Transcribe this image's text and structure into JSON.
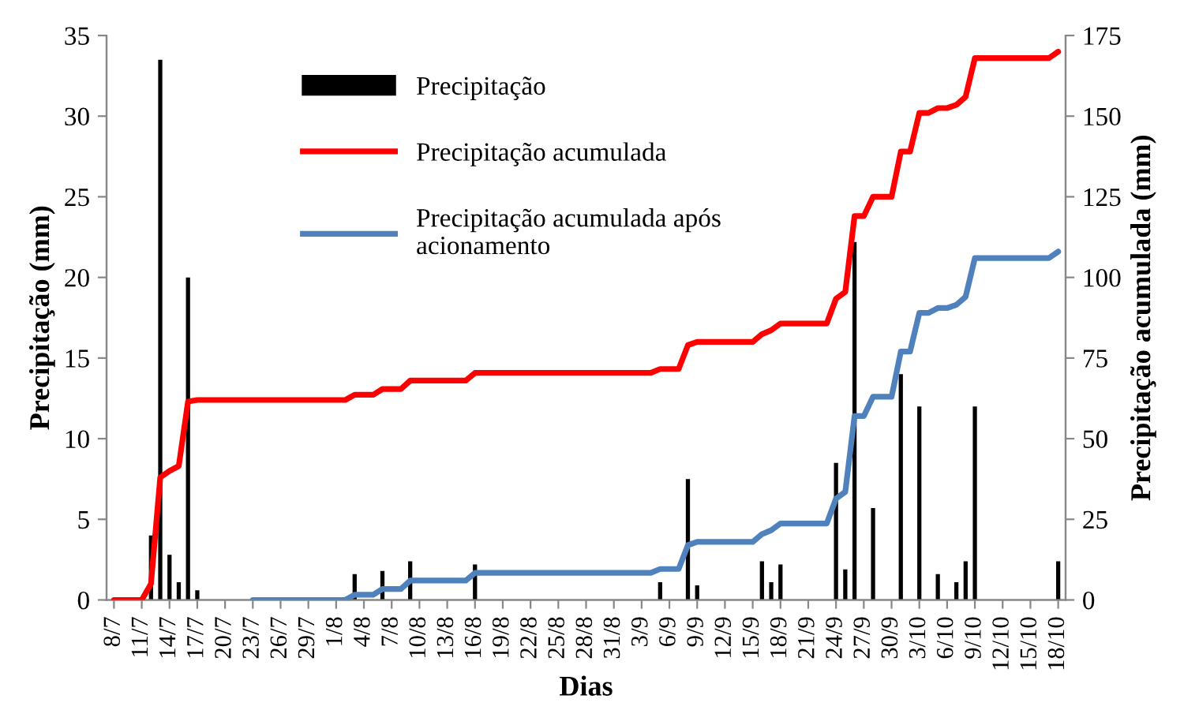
{
  "chart_data": {
    "type": "bar",
    "xlabel": "Dias",
    "ylabel": "Precipitação (mm)",
    "y2label": "Precipitação acumulada (mm)",
    "categories": [
      "8/7",
      null,
      null,
      "11/7",
      null,
      null,
      "14/7",
      null,
      null,
      "17/7",
      null,
      null,
      "20/7",
      null,
      null,
      "23/7",
      null,
      null,
      "26/7",
      null,
      null,
      "29/7",
      null,
      null,
      "1/8",
      null,
      null,
      "4/8",
      null,
      null,
      "7/8",
      null,
      null,
      "10/8",
      null,
      null,
      "13/8",
      null,
      null,
      "16/8",
      null,
      null,
      "19/8",
      null,
      null,
      "22/8",
      null,
      null,
      "25/8",
      null,
      null,
      "28/8",
      null,
      null,
      "31/8",
      null,
      null,
      "3/9",
      null,
      null,
      "6/9",
      null,
      null,
      "9/9",
      null,
      null,
      "12/9",
      null,
      null,
      "15/9",
      null,
      null,
      "18/9",
      null,
      null,
      "21/9",
      null,
      null,
      "24/9",
      null,
      null,
      "27/9",
      null,
      null,
      "30/9",
      null,
      null,
      "3/10",
      null,
      null,
      "6/10",
      null,
      null,
      "9/10",
      null,
      null,
      "12/10",
      null,
      null,
      "15/10",
      null,
      null,
      "18/10"
    ],
    "series": [
      {
        "name": "Precipitação",
        "color": "#000000",
        "values": [
          0,
          0,
          0,
          0,
          4,
          33.5,
          2.8,
          1.1,
          20,
          0.6,
          0,
          0,
          0,
          0,
          0,
          0,
          0,
          0,
          0,
          0,
          0,
          0,
          0,
          0,
          0,
          0,
          1.6,
          0,
          0,
          1.8,
          0,
          0,
          2.4,
          0,
          0,
          0,
          0,
          0,
          0,
          2.2,
          0,
          0,
          0,
          0,
          0,
          0,
          0,
          0,
          0,
          0,
          0,
          0,
          0,
          0,
          0,
          0,
          0,
          0,
          0,
          1.1,
          0,
          0,
          7.5,
          0.9,
          0,
          0,
          0,
          0,
          0,
          0,
          2.4,
          1.1,
          2.2,
          0,
          0,
          0,
          0,
          0,
          8.5,
          1.9,
          22.2,
          0,
          5.7,
          0,
          0,
          14,
          0,
          12,
          0,
          1.6,
          0,
          1.1,
          2.4,
          12,
          0,
          0,
          0,
          0,
          0,
          0,
          0,
          0,
          2.4
        ]
      },
      {
        "name": "Precipitação acumulada",
        "type": "line",
        "axis": "y2",
        "color": "#ff0000",
        "values": [
          0,
          0,
          0,
          0,
          5,
          38,
          40,
          41.5,
          61.5,
          62,
          62,
          62,
          62,
          62,
          62,
          62,
          62,
          62,
          62,
          62,
          62,
          62,
          62,
          62,
          62,
          62,
          63.6,
          63.6,
          63.6,
          65.4,
          65.4,
          65.4,
          68,
          68,
          68,
          68,
          68,
          68,
          68,
          70.4,
          70.4,
          70.4,
          70.4,
          70.4,
          70.4,
          70.4,
          70.4,
          70.4,
          70.4,
          70.4,
          70.4,
          70.4,
          70.4,
          70.4,
          70.4,
          70.4,
          70.4,
          70.4,
          70.4,
          71.6,
          71.6,
          71.6,
          79,
          80,
          80,
          80,
          80,
          80,
          80,
          80,
          82.4,
          83.6,
          85.7,
          85.7,
          85.7,
          85.7,
          85.7,
          85.7,
          93.4,
          95.5,
          119,
          119,
          125,
          125,
          125,
          139,
          139,
          151,
          151,
          152.5,
          152.5,
          153.5,
          156,
          168,
          168,
          168,
          168,
          168,
          168,
          168,
          168,
          168,
          170
        ]
      },
      {
        "name": "Precipitação acumulada após\nacionamento",
        "type": "line",
        "axis": "y2",
        "color": "#4f81bd",
        "values": [
          null,
          null,
          null,
          null,
          null,
          null,
          null,
          null,
          null,
          null,
          null,
          null,
          null,
          null,
          null,
          0,
          0,
          0,
          0,
          0,
          0,
          0,
          0,
          0,
          0,
          0,
          1.6,
          1.6,
          1.6,
          3.4,
          3.4,
          3.4,
          6,
          6,
          6,
          6,
          6,
          6,
          6,
          8.4,
          8.4,
          8.4,
          8.4,
          8.4,
          8.4,
          8.4,
          8.4,
          8.4,
          8.4,
          8.4,
          8.4,
          8.4,
          8.4,
          8.4,
          8.4,
          8.4,
          8.4,
          8.4,
          8.4,
          9.6,
          9.6,
          9.6,
          17,
          18,
          18,
          18,
          18,
          18,
          18,
          18,
          20.4,
          21.6,
          23.7,
          23.7,
          23.7,
          23.7,
          23.7,
          23.7,
          31.4,
          33.5,
          57,
          57,
          63,
          63,
          63,
          77,
          77,
          89,
          89,
          90.5,
          90.5,
          91.5,
          94,
          106,
          106,
          106,
          106,
          106,
          106,
          106,
          106,
          106,
          108
        ]
      }
    ],
    "ylim": [
      0,
      35
    ],
    "yticks": [
      0,
      5,
      10,
      15,
      20,
      25,
      30,
      35
    ],
    "y2lim": [
      0,
      175
    ],
    "y2ticks": [
      0,
      25,
      50,
      75,
      100,
      125,
      150,
      175
    ],
    "grid": false,
    "legend": "top"
  }
}
